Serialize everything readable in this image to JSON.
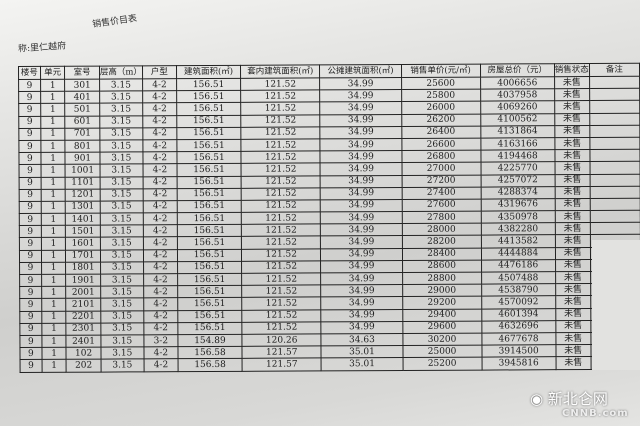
{
  "title": "销售价目表",
  "subtitle": "称:里仁越府",
  "columns": [
    "楼号",
    "单元",
    "室号",
    "层高（m）",
    "户型",
    "建筑面积(㎡)",
    "套内建筑面积(㎡)",
    "公摊建筑面积(㎡)",
    "销售单价(元/㎡)",
    "房屋总价（元）",
    "销售状态",
    "备注"
  ],
  "rows": [
    [
      "9",
      "1",
      "301",
      "3.15",
      "4-2",
      "156.51",
      "121.52",
      "34.99",
      "25600",
      "4006656",
      "未售",
      ""
    ],
    [
      "9",
      "1",
      "401",
      "3.15",
      "4-2",
      "156.51",
      "121.52",
      "34.99",
      "25800",
      "4037958",
      "未售",
      ""
    ],
    [
      "9",
      "1",
      "501",
      "3.15",
      "4-2",
      "156.51",
      "121.52",
      "34.99",
      "26000",
      "4069260",
      "未售",
      ""
    ],
    [
      "9",
      "1",
      "601",
      "3.15",
      "4-2",
      "156.51",
      "121.52",
      "34.99",
      "26200",
      "4100562",
      "未售",
      ""
    ],
    [
      "9",
      "1",
      "701",
      "3.15",
      "4-2",
      "156.51",
      "121.52",
      "34.99",
      "26400",
      "4131864",
      "未售",
      ""
    ],
    [
      "9",
      "1",
      "801",
      "3.15",
      "4-2",
      "156.51",
      "121.52",
      "34.99",
      "26600",
      "4163166",
      "未售",
      ""
    ],
    [
      "9",
      "1",
      "901",
      "3.15",
      "4-2",
      "156.51",
      "121.52",
      "34.99",
      "26800",
      "4194468",
      "未售",
      ""
    ],
    [
      "9",
      "1",
      "1001",
      "3.15",
      "4-2",
      "156.51",
      "121.52",
      "34.99",
      "27000",
      "4225770",
      "未售",
      ""
    ],
    [
      "9",
      "1",
      "1101",
      "3.15",
      "4-2",
      "156.51",
      "121.52",
      "34.99",
      "27200",
      "4257072",
      "未售",
      ""
    ],
    [
      "9",
      "1",
      "1201",
      "3.15",
      "4-2",
      "156.51",
      "121.52",
      "34.99",
      "27400",
      "4288374",
      "未售",
      ""
    ],
    [
      "9",
      "1",
      "1301",
      "3.15",
      "4-2",
      "156.51",
      "121.52",
      "34.99",
      "27600",
      "4319676",
      "未售",
      ""
    ],
    [
      "9",
      "1",
      "1401",
      "3.15",
      "4-2",
      "156.51",
      "121.52",
      "34.99",
      "27800",
      "4350978",
      "未售",
      ""
    ],
    [
      "9",
      "1",
      "1501",
      "3.15",
      "4-2",
      "156.51",
      "121.52",
      "34.99",
      "28000",
      "4382280",
      "未售",
      ""
    ],
    [
      "9",
      "1",
      "1601",
      "3.15",
      "4-2",
      "156.51",
      "121.52",
      "34.99",
      "28200",
      "4413582",
      "未售",
      ""
    ],
    [
      "9",
      "1",
      "1701",
      "3.15",
      "4-2",
      "156.51",
      "121.52",
      "34.99",
      "28400",
      "4444884",
      "未售",
      ""
    ],
    [
      "9",
      "1",
      "1801",
      "3.15",
      "4-2",
      "156.51",
      "121.52",
      "34.99",
      "28600",
      "4476186",
      "未售",
      ""
    ],
    [
      "9",
      "1",
      "1901",
      "3.15",
      "4-2",
      "156.51",
      "121.52",
      "34.99",
      "28800",
      "4507488",
      "未售",
      ""
    ],
    [
      "9",
      "1",
      "2001",
      "3.15",
      "4-2",
      "156.51",
      "121.52",
      "34.99",
      "29000",
      "4538790",
      "未售",
      ""
    ],
    [
      "9",
      "1",
      "2101",
      "3.15",
      "4-2",
      "156.51",
      "121.52",
      "34.99",
      "29200",
      "4570092",
      "未售",
      ""
    ],
    [
      "9",
      "1",
      "2201",
      "3.15",
      "4-2",
      "156.51",
      "121.52",
      "34.99",
      "29400",
      "4601394",
      "未售",
      ""
    ],
    [
      "9",
      "1",
      "2301",
      "3.15",
      "4-2",
      "156.51",
      "121.52",
      "34.99",
      "29600",
      "4632696",
      "未售",
      ""
    ],
    [
      "9",
      "1",
      "2401",
      "3.15",
      "3-2",
      "154.89",
      "120.26",
      "34.63",
      "30200",
      "4677678",
      "未售",
      ""
    ],
    [
      "9",
      "1",
      "102",
      "3.15",
      "4-2",
      "156.58",
      "121.57",
      "35.01",
      "25000",
      "3914500",
      "未售",
      ""
    ],
    [
      "9",
      "1",
      "202",
      "3.15",
      "4-2",
      "156.58",
      "121.57",
      "35.01",
      "25200",
      "3945816",
      "未售",
      ""
    ]
  ],
  "watermark": {
    "name": "新北仑网",
    "brand": "CNNB.com",
    "icon": "wechat-icon"
  }
}
